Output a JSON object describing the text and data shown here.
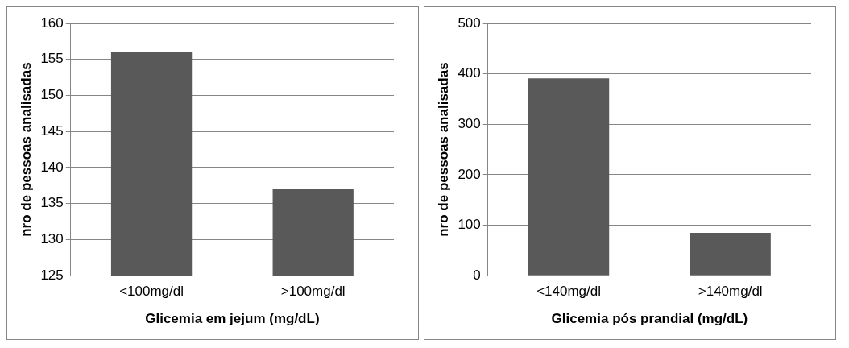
{
  "chart_data": [
    {
      "type": "bar",
      "xlabel": "Glicemia em jejum (mg/dL)",
      "ylabel": "nro de pessoas analisadas",
      "categories": [
        "<100mg/dl",
        ">100mg/dl"
      ],
      "values": [
        156,
        137
      ],
      "color": "#595959",
      "ylim": [
        125,
        160
      ],
      "yticks": [
        125,
        130,
        135,
        140,
        145,
        150,
        155,
        160
      ],
      "grid": "y",
      "legend": false
    },
    {
      "type": "bar",
      "xlabel": "Glicemia pós prandial (mg/dL)",
      "ylabel": "nro de pessoas analisadas",
      "categories": [
        "<140mg/dl",
        ">140mg/dl"
      ],
      "values": [
        391,
        85
      ],
      "color": "#595959",
      "ylim": [
        0,
        500
      ],
      "yticks": [
        0,
        100,
        200,
        300,
        400,
        500
      ],
      "grid": "y",
      "legend": false
    }
  ]
}
